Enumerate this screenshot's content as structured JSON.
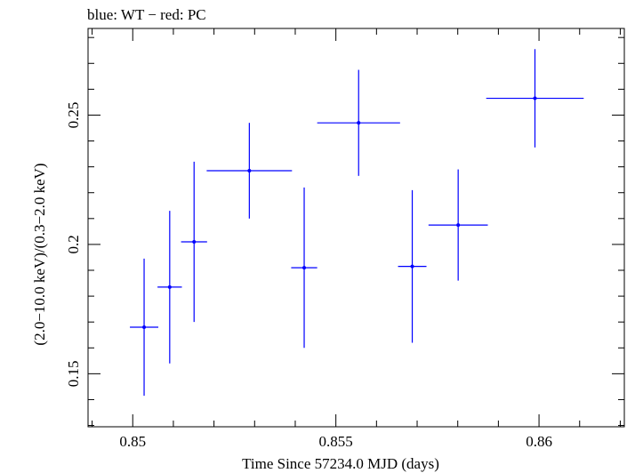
{
  "chart_data": {
    "type": "scatter",
    "title": "blue: WT − red: PC",
    "xlabel": "Time Since 57234.0 MJD (days)",
    "ylabel": "(2.0−10.0 keV)/(0.3−2.0 keV)",
    "xlim": [
      0.8489,
      0.8621
    ],
    "ylim": [
      0.1295,
      0.2835
    ],
    "x_ticks": [
      {
        "value": 0.85,
        "label": "0.85"
      },
      {
        "value": 0.855,
        "label": "0.855"
      },
      {
        "value": 0.86,
        "label": "0.86"
      }
    ],
    "y_ticks": [
      {
        "value": 0.15,
        "label": "0.15"
      },
      {
        "value": 0.2,
        "label": "0.2"
      },
      {
        "value": 0.25,
        "label": "0.25"
      }
    ],
    "x_minor_step": 0.001,
    "y_minor_step": 0.01,
    "grid": false,
    "series": [
      {
        "color": "#0000ff",
        "points": [
          {
            "x": 0.85028,
            "y": 0.168,
            "xerr": 0.00035,
            "yerr_low": 0.0265,
            "yerr_high": 0.0265
          },
          {
            "x": 0.85091,
            "y": 0.1835,
            "xerr": 0.0003,
            "yerr_low": 0.0295,
            "yerr_high": 0.0295
          },
          {
            "x": 0.85151,
            "y": 0.201,
            "xerr": 0.00032,
            "yerr_low": 0.031,
            "yerr_high": 0.031
          },
          {
            "x": 0.85287,
            "y": 0.2285,
            "xerr": 0.00105,
            "yerr_low": 0.0185,
            "yerr_high": 0.0185
          },
          {
            "x": 0.85422,
            "y": 0.191,
            "xerr": 0.00032,
            "yerr_low": 0.031,
            "yerr_high": 0.031
          },
          {
            "x": 0.85556,
            "y": 0.247,
            "xerr": 0.00102,
            "yerr_low": 0.0205,
            "yerr_high": 0.0205
          },
          {
            "x": 0.85688,
            "y": 0.1915,
            "xerr": 0.00035,
            "yerr_low": 0.0295,
            "yerr_high": 0.0295
          },
          {
            "x": 0.85801,
            "y": 0.2075,
            "xerr": 0.00073,
            "yerr_low": 0.0215,
            "yerr_high": 0.0215
          },
          {
            "x": 0.8599,
            "y": 0.2565,
            "xerr": 0.0012,
            "yerr_low": 0.019,
            "yerr_high": 0.019
          }
        ]
      }
    ]
  }
}
